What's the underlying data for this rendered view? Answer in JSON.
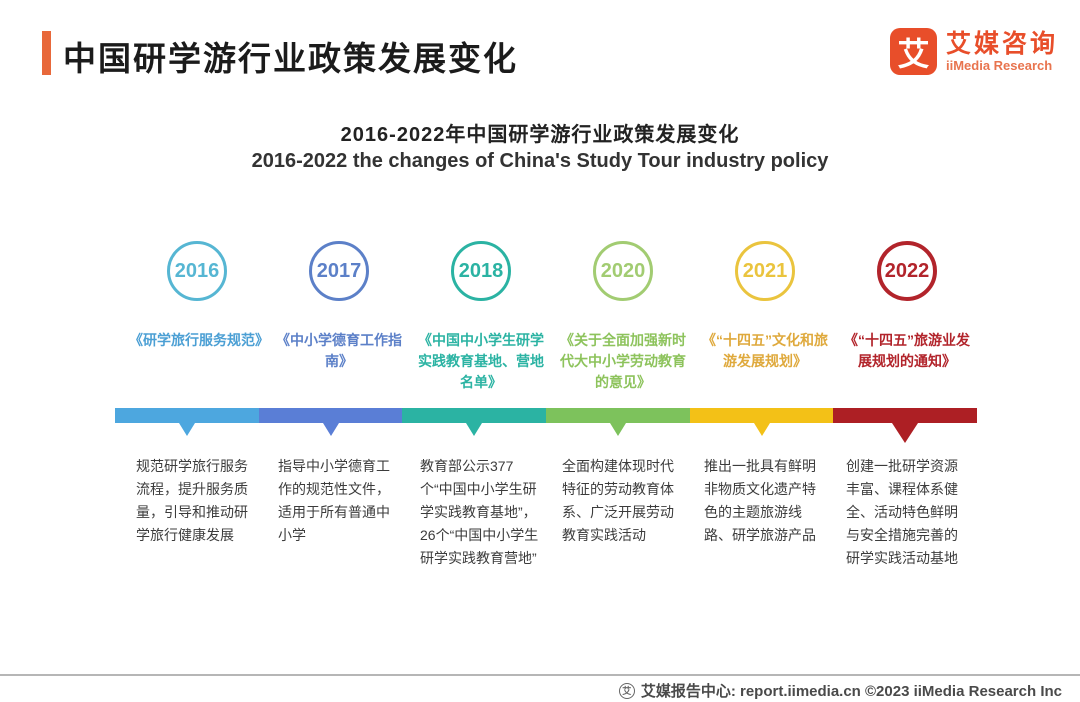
{
  "header": {
    "title": "中国研学游行业政策发展变化",
    "accent_color": "#e8683a"
  },
  "logo": {
    "mark": "艾",
    "name_cn": "艾媒咨询",
    "name_en": "iiMedia Research",
    "brand_color": "#e84e2a"
  },
  "subtitle_cn": "2016-2022年中国研学游行业政策发展变化",
  "subtitle_en": "2016-2022 the changes of China's Study Tour industry policy",
  "chart_data": {
    "type": "table",
    "title": "2016-2022年中国研学游行业政策发展变化",
    "subtitle": "2016-2022 the changes of China's Study Tour industry policy",
    "categories": [
      "2016",
      "2017",
      "2018",
      "2020",
      "2021",
      "2022"
    ],
    "series": [
      {
        "name": "政策文件",
        "values": [
          "《研学旅行服务规范》",
          "《中小学德育工作指南》",
          "《中国中小学生研学实践教育基地、营地名单》",
          "《关于全面加强新时代大中小学劳动教育的意见》",
          "《“十四五”文化和旅游发展规划》",
          "《“十四五”旅游业发展规划的通知》"
        ]
      },
      {
        "name": "政策内容",
        "values": [
          "规范研学旅行服务流程，提升服务质量，引导和推动研学旅行健康发展",
          "指导中小学德育工作的规范性文件，适用于所有普通中小学",
          "教育部公示377个“中国中小学生研学实践教育基地”，26个“中国中小学生研学实践教育营地”",
          "全面构建体现时代特征的劳动教育体系、广泛开展劳动教育实践活动",
          "推出一批具有鲜明非物质文化遗产特色的主题旅游线路、研学旅游产品",
          "创建一批研学资源丰富、课程体系健全、活动特色鲜明与安全措施完善的研学实践活动基地"
        ]
      }
    ]
  },
  "timeline": {
    "items": [
      {
        "year": "2016",
        "circle_color": "#56b6d3",
        "bar_color": "#4da7df",
        "policy": "《研学旅行服务规范》",
        "policy_color": "#4b9fd4",
        "description": "规范研学旅行服务流程，提升服务质量，引导和推动研学旅行健康发展"
      },
      {
        "year": "2017",
        "circle_color": "#5c80c8",
        "bar_color": "#5a7ed6",
        "policy": "《中小学德育工作指南》",
        "policy_color": "#5c80c8",
        "description": "指导中小学德育工作的规范性文件，适用于所有普通中小学"
      },
      {
        "year": "2018",
        "circle_color": "#2bb3a3",
        "bar_color": "#2bb3a3",
        "policy": "《中国中小学生研学实践教育基地、营地名单》",
        "policy_color": "#2bb3a3",
        "description": "教育部公示377个“中国中小学生研学实践教育基地”，26个“中国中小学生研学实践教育营地”"
      },
      {
        "year": "2020",
        "circle_color": "#a2cc72",
        "bar_color": "#7dc25c",
        "policy": "《关于全面加强新时代大中小学劳动教育的意见》",
        "policy_color": "#8dc35c",
        "description": "全面构建体现时代特征的劳动教育体系、广泛开展劳动教育实践活动"
      },
      {
        "year": "2021",
        "circle_color": "#eac43e",
        "bar_color": "#f3c117",
        "policy": "《“十四五”文化和旅游发展规划》",
        "policy_color": "#dfa93c",
        "description": "推出一批具有鲜明非物质文化遗产特色的主题旅游线路、研学旅游产品"
      },
      {
        "year": "2022",
        "circle_color": "#b2242b",
        "bar_color": "#ad1f24",
        "policy": "《“十四五”旅游业发展规划的通知》",
        "policy_color": "#b2242b",
        "description": "创建一批研学资源丰富、课程体系健全、活动特色鲜明与安全措施完善的研学实践活动基地"
      }
    ]
  },
  "footer": {
    "text": "艾媒报告中心: report.iimedia.cn ©2023 iiMedia Research Inc",
    "icon_glyph": "艾"
  }
}
